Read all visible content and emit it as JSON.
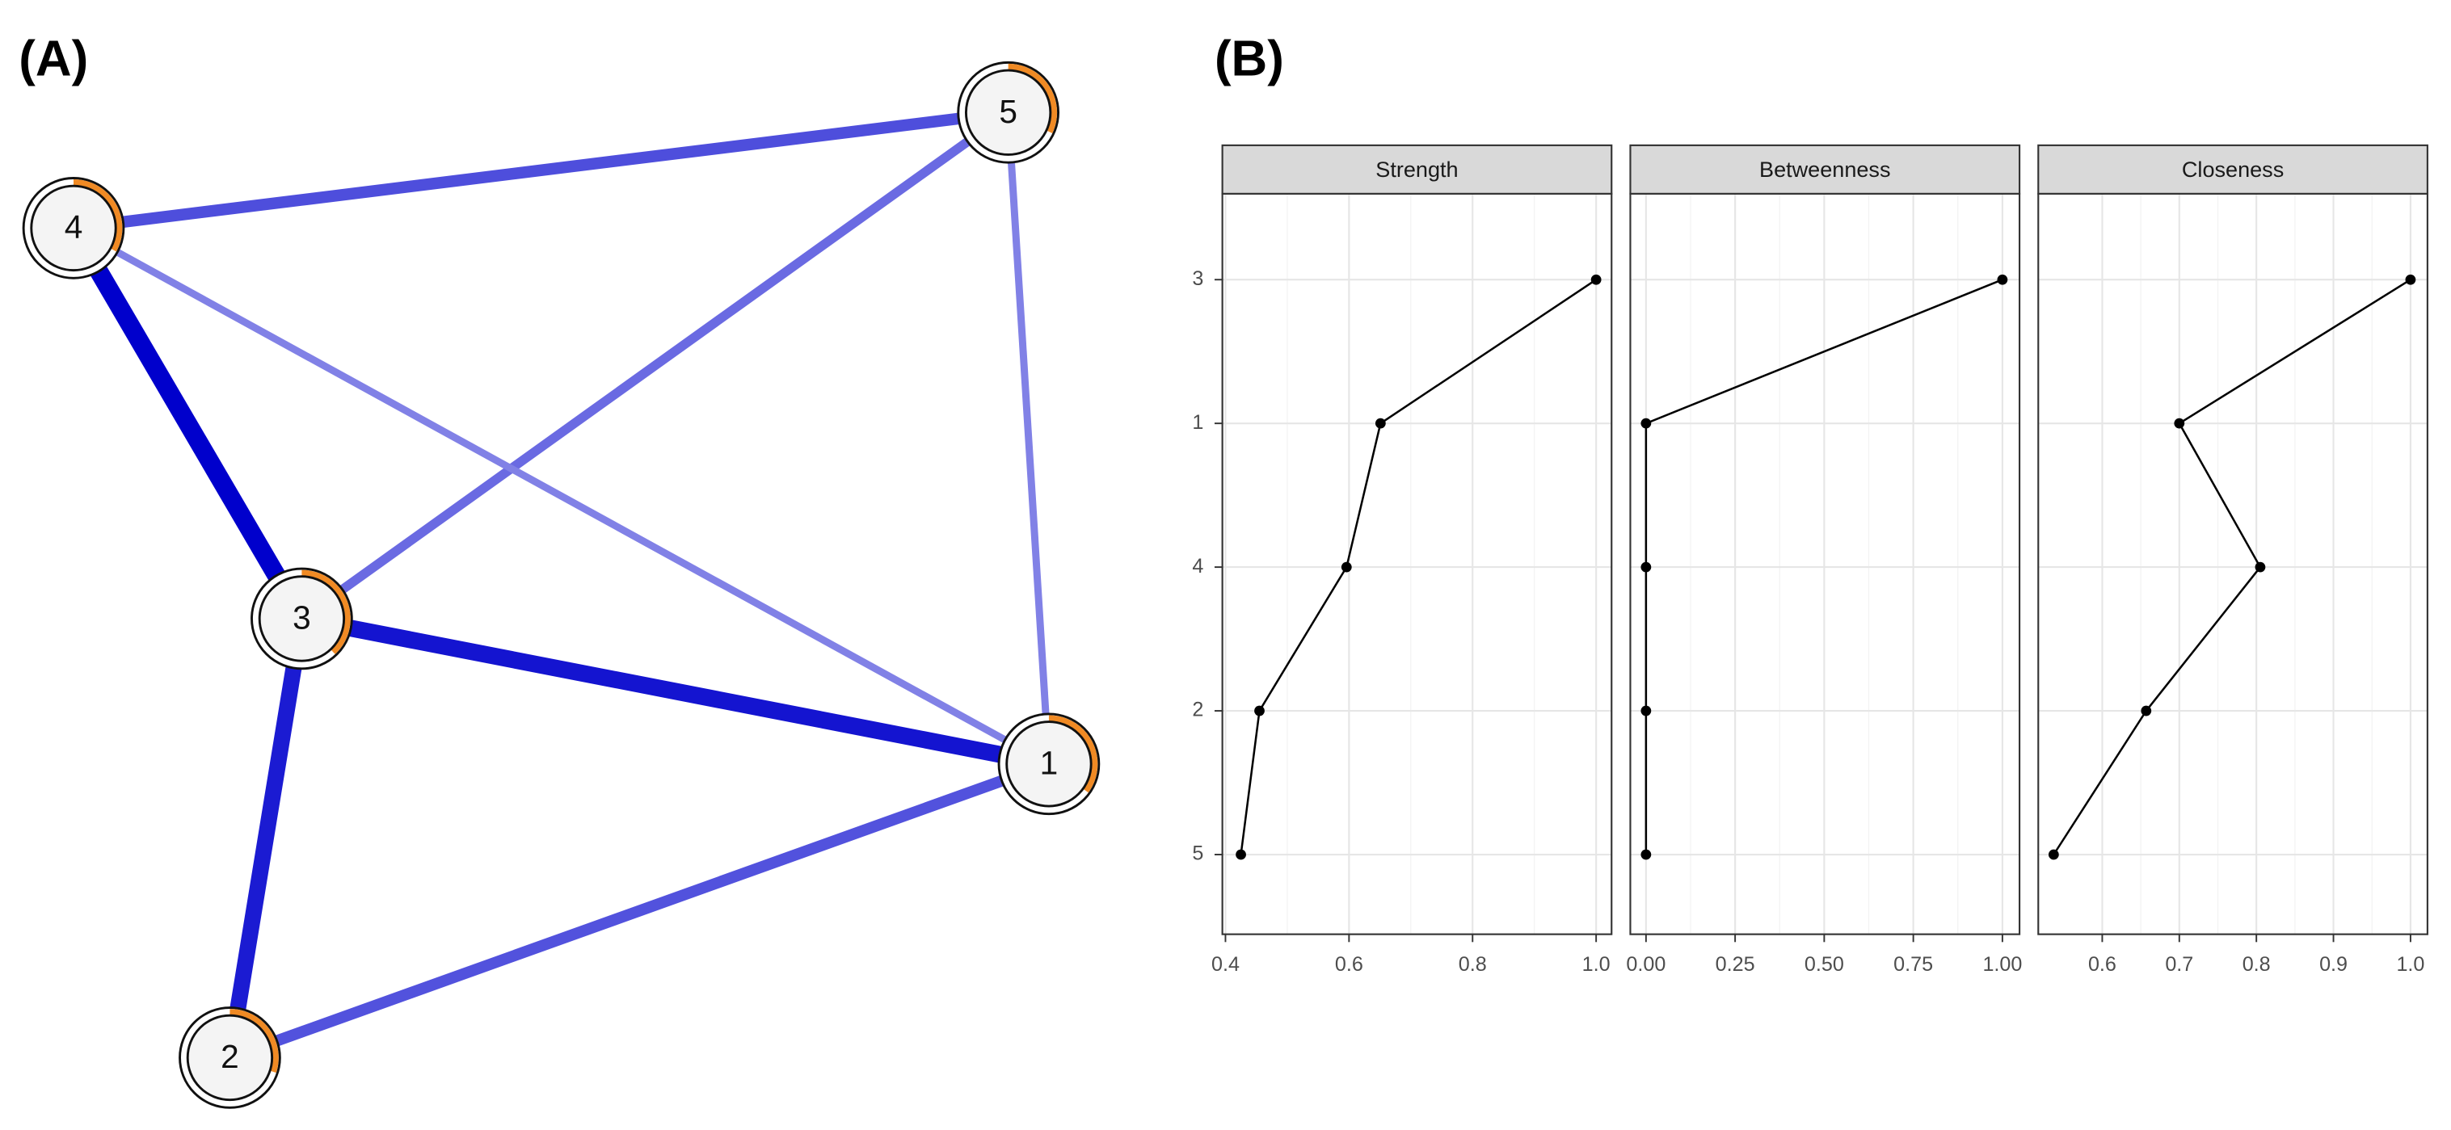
{
  "chart_data": [
    {
      "type": "network",
      "label": "(A)",
      "nodes": [
        "1",
        "2",
        "3",
        "4",
        "5"
      ],
      "predictability": [
        0.35,
        0.3,
        0.38,
        0.33,
        0.32
      ],
      "edges": [
        {
          "source": "4",
          "target": "3",
          "weight": 0.45
        },
        {
          "source": "3",
          "target": "1",
          "weight": 0.4
        },
        {
          "source": "3",
          "target": "2",
          "weight": 0.38
        },
        {
          "source": "4",
          "target": "5",
          "weight": 0.25
        },
        {
          "source": "2",
          "target": "1",
          "weight": 0.24
        },
        {
          "source": "3",
          "target": "5",
          "weight": 0.18
        },
        {
          "source": "4",
          "target": "1",
          "weight": 0.12
        },
        {
          "source": "5",
          "target": "1",
          "weight": 0.12
        }
      ]
    },
    {
      "type": "dot-line",
      "label": "(B)",
      "categories": [
        "3",
        "1",
        "4",
        "2",
        "5"
      ],
      "grid": true,
      "panels": [
        {
          "title": "Strength",
          "values": [
            1.0,
            0.651,
            0.596,
            0.455,
            0.425
          ],
          "xlim": [
            0.395,
            1.025
          ],
          "xticks": [
            0.4,
            0.6,
            0.8,
            {
              "value": 1,
              "label": "1.0"
            }
          ]
        },
        {
          "title": "Betweenness",
          "values": [
            1.0,
            0,
            0,
            0,
            0
          ],
          "xlim": [
            -0.044,
            1.048
          ],
          "xticks": [
            {
              "value": 0,
              "label": "0.00"
            },
            {
              "value": 0.25,
              "label": "0.25"
            },
            {
              "value": 0.5,
              "label": "0.50"
            },
            {
              "value": 0.75,
              "label": "0.75"
            },
            {
              "value": 1,
              "label": "1.00"
            }
          ]
        },
        {
          "title": "Closeness",
          "values": [
            1.0,
            0.7,
            0.805,
            0.657,
            0.537
          ],
          "xlim": [
            0.517,
            1.022
          ],
          "xticks": [
            0.6,
            0.7,
            0.8,
            0.9,
            {
              "value": 1,
              "label": "1.0"
            }
          ]
        }
      ]
    }
  ]
}
